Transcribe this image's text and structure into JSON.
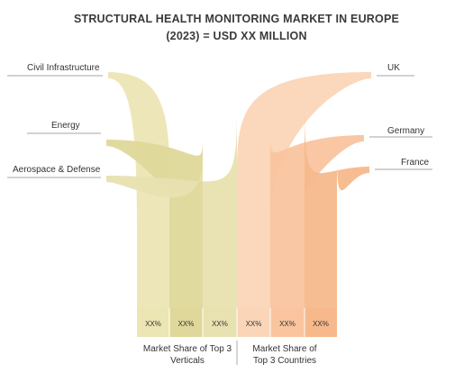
{
  "title_line1": "STRUCTURAL HEALTH MONITORING MARKET IN EUROPE",
  "title_line2": "(2023) = USD XX MILLION",
  "chart_data": {
    "type": "area",
    "groups": [
      {
        "caption_lines": [
          "Market Share of Top 3",
          "Verticals"
        ],
        "items": [
          {
            "name": "Civil Infrastructure",
            "value_label": "XX%",
            "color": "#ece5b4"
          },
          {
            "name": "Energy",
            "value_label": "XX%",
            "color": "#dfd89a"
          },
          {
            "name": "Aerospace & Defense",
            "value_label": "XX%",
            "color": "#e8e2b0"
          }
        ]
      },
      {
        "caption_lines": [
          "Market Share of",
          "Top 3 Countries"
        ],
        "items": [
          {
            "name": "UK",
            "value_label": "XX%",
            "color": "#fbd5b8"
          },
          {
            "name": "Germany",
            "value_label": "XX%",
            "color": "#f9c49e"
          },
          {
            "name": "France",
            "value_label": "XX%",
            "color": "#f7b98c"
          }
        ]
      }
    ]
  }
}
